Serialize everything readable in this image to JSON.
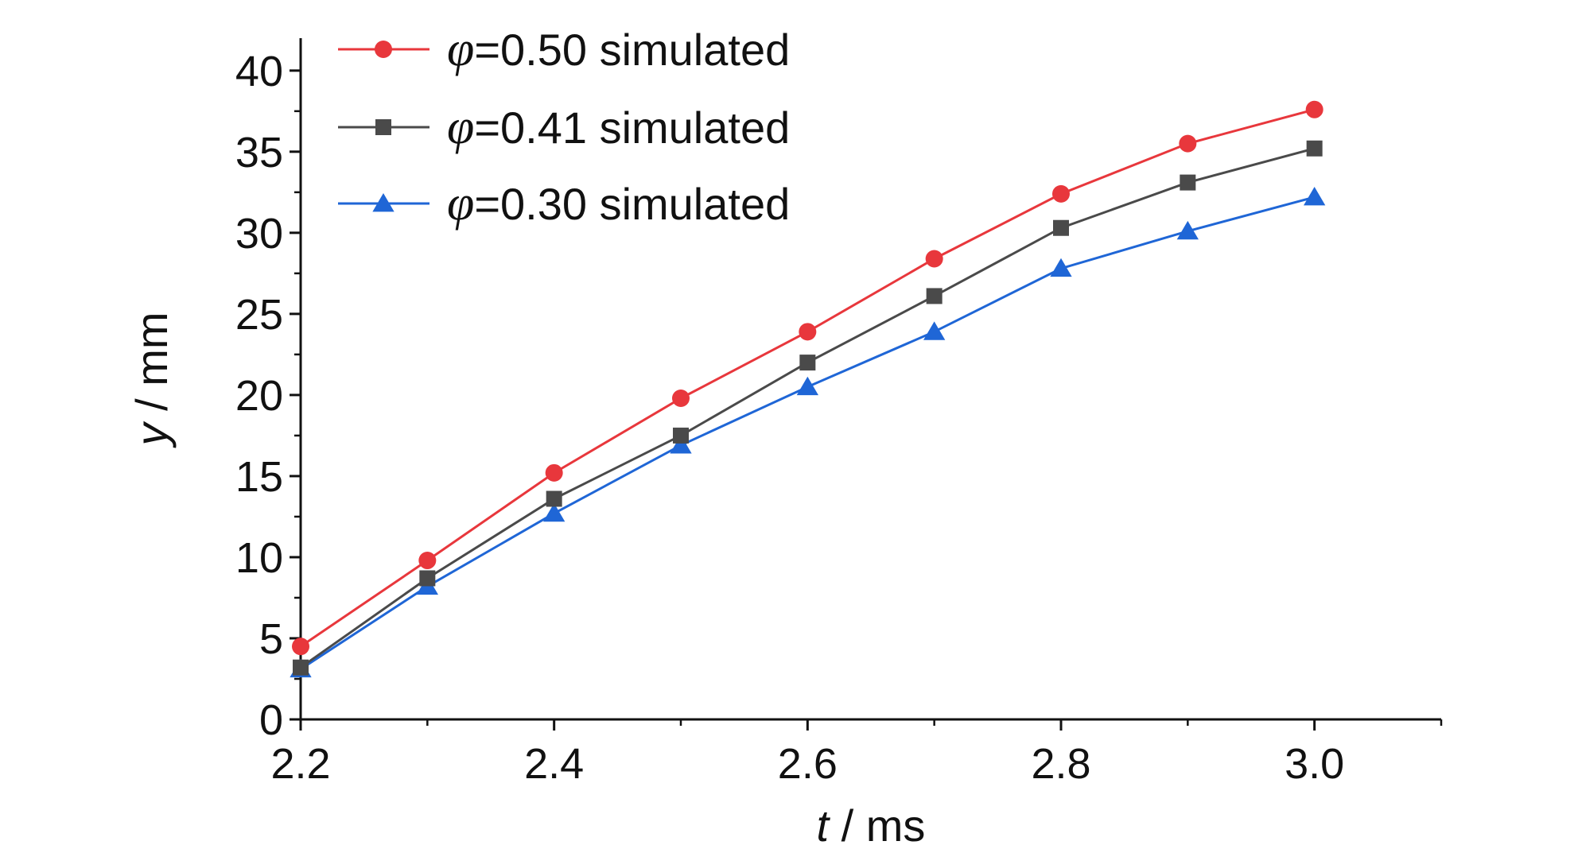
{
  "chart_data": {
    "type": "line",
    "xlabel": {
      "var": "t",
      "unit": " / ms"
    },
    "ylabel": {
      "var": "y",
      "unit": " / mm"
    },
    "xlim": [
      2.2,
      3.1
    ],
    "ylim": [
      0,
      42
    ],
    "x_ticks": [
      2.2,
      2.4,
      2.6,
      2.8,
      3.0
    ],
    "x_tick_labels": [
      "2.2",
      "2.4",
      "2.6",
      "2.8",
      "3.0"
    ],
    "x_minor_ticks": [
      2.3,
      2.5,
      2.7,
      2.9,
      3.1
    ],
    "y_ticks": [
      0,
      5,
      10,
      15,
      20,
      25,
      30,
      35,
      40
    ],
    "y_tick_labels": [
      "0",
      "5",
      "10",
      "15",
      "20",
      "25",
      "30",
      "35",
      "40"
    ],
    "y_minor_ticks": [
      2.5,
      7.5,
      12.5,
      17.5,
      22.5,
      27.5,
      32.5,
      37.5
    ],
    "grid": false,
    "legend_position": "top-left",
    "x": [
      2.2,
      2.3,
      2.4,
      2.5,
      2.6,
      2.7,
      2.8,
      2.9,
      3.0
    ],
    "series": [
      {
        "name": "φ=0.50 simulated",
        "legend_symbol": "φ",
        "legend_rest": "=0.50 simulated",
        "marker": "circle",
        "color": "#e8373c",
        "values": [
          4.5,
          9.8,
          15.2,
          19.8,
          23.9,
          28.4,
          32.4,
          35.5,
          37.6
        ]
      },
      {
        "name": "φ=0.41 simulated",
        "legend_symbol": "φ",
        "legend_rest": "=0.41 simulated",
        "marker": "square",
        "color": "#4a4a4a",
        "values": [
          3.2,
          8.7,
          13.6,
          17.5,
          22.0,
          26.1,
          30.3,
          33.1,
          35.2
        ]
      },
      {
        "name": "φ=0.30 simulated",
        "legend_symbol": "φ",
        "legend_rest": "=0.30 simulated",
        "marker": "triangle",
        "color": "#1f66d6",
        "values": [
          3.1,
          8.2,
          12.7,
          16.9,
          20.5,
          23.9,
          27.8,
          30.1,
          32.2
        ]
      }
    ]
  }
}
